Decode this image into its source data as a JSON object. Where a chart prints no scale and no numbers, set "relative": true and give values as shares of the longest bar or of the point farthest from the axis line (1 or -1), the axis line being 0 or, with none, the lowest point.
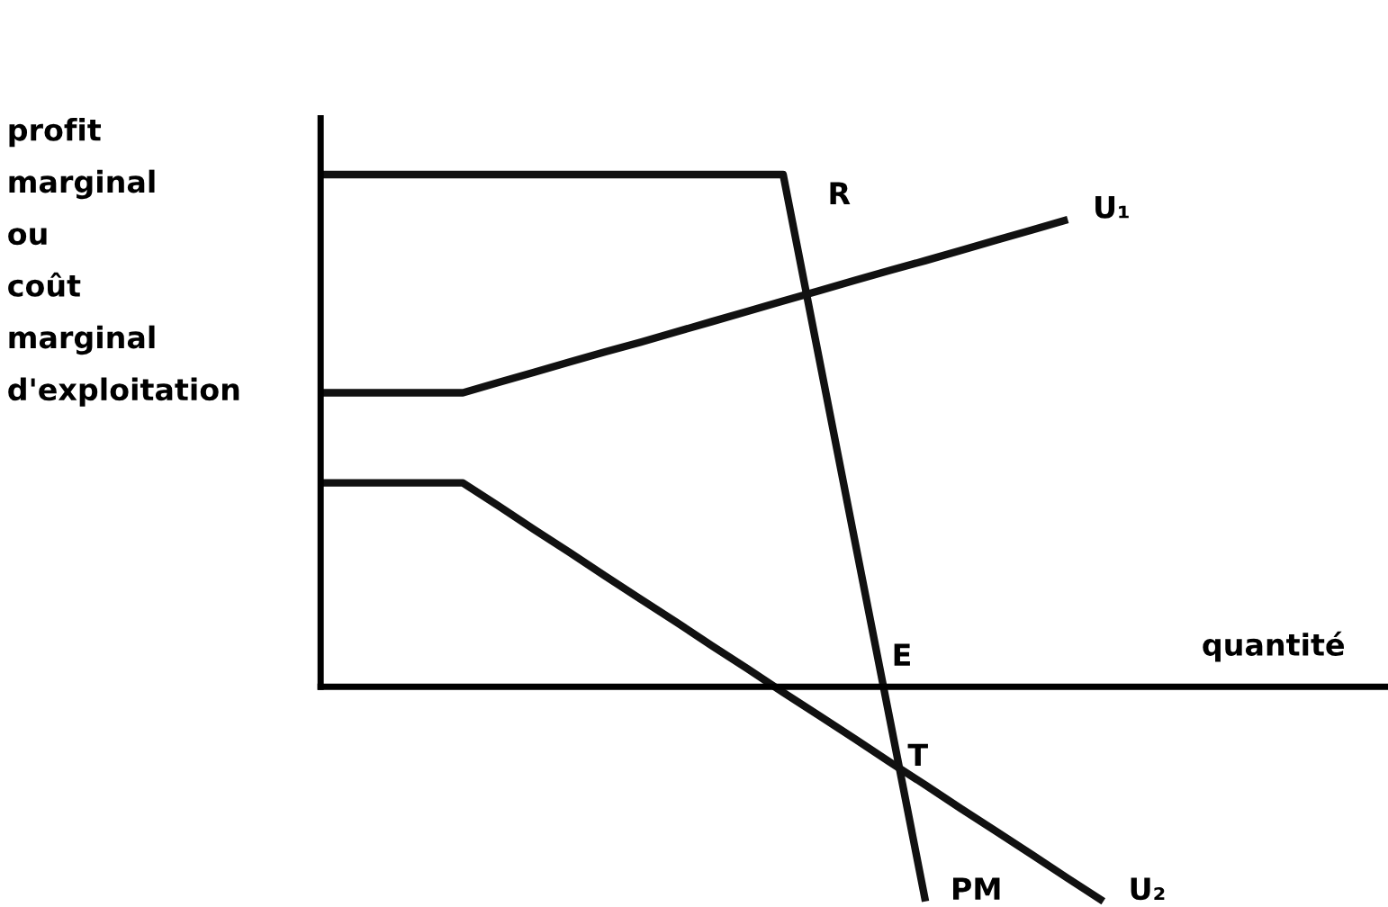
{
  "chart_data": {
    "type": "line",
    "relative": true,
    "ylabel": "profit\nmarginal\nou\ncoût\nmarginal\nd'exploitation",
    "xlabel": "quantité",
    "marker": "none",
    "line_style": "solid",
    "categories": [
      null,
      null,
      null,
      null,
      null,
      null,
      null,
      null,
      null,
      null,
      null,
      null,
      null,
      null,
      null,
      null,
      null,
      null,
      null,
      null,
      null,
      null,
      null,
      null,
      null,
      null,
      null,
      null,
      null,
      null,
      null
    ],
    "series": [
      {
        "name": "PM",
        "color": "#111111",
        "values": [
          1,
          1,
          1,
          1,
          1,
          1,
          1,
          1,
          1,
          1,
          1,
          1,
          1,
          1,
          0.645,
          0.29,
          -0.064,
          -0.419,
          null,
          null,
          null,
          null,
          null,
          null,
          null,
          null,
          null,
          null,
          null,
          null,
          null
        ]
      },
      {
        "name": "U₁",
        "color": "#111111",
        "values": [
          0.574,
          0.574,
          0.574,
          0.574,
          0.574,
          0.594,
          0.614,
          0.634,
          0.654,
          0.673,
          0.693,
          0.713,
          0.733,
          0.753,
          0.773,
          0.793,
          0.813,
          0.832,
          0.852,
          0.872,
          0.892,
          0.912,
          null,
          null,
          null,
          null,
          null,
          null,
          null,
          null,
          null
        ]
      },
      {
        "name": "U₂",
        "color": "#111111",
        "values": [
          0.398,
          0.398,
          0.398,
          0.398,
          0.398,
          0.353,
          0.307,
          0.262,
          0.216,
          0.171,
          0.126,
          0.08,
          0.035,
          -0.011,
          -0.056,
          -0.101,
          -0.147,
          -0.192,
          -0.238,
          -0.283,
          -0.328,
          -0.374,
          -0.419,
          null,
          null,
          null,
          null,
          null,
          null,
          null,
          null
        ]
      }
    ],
    "annotations": [
      "R",
      "E",
      "T"
    ]
  }
}
